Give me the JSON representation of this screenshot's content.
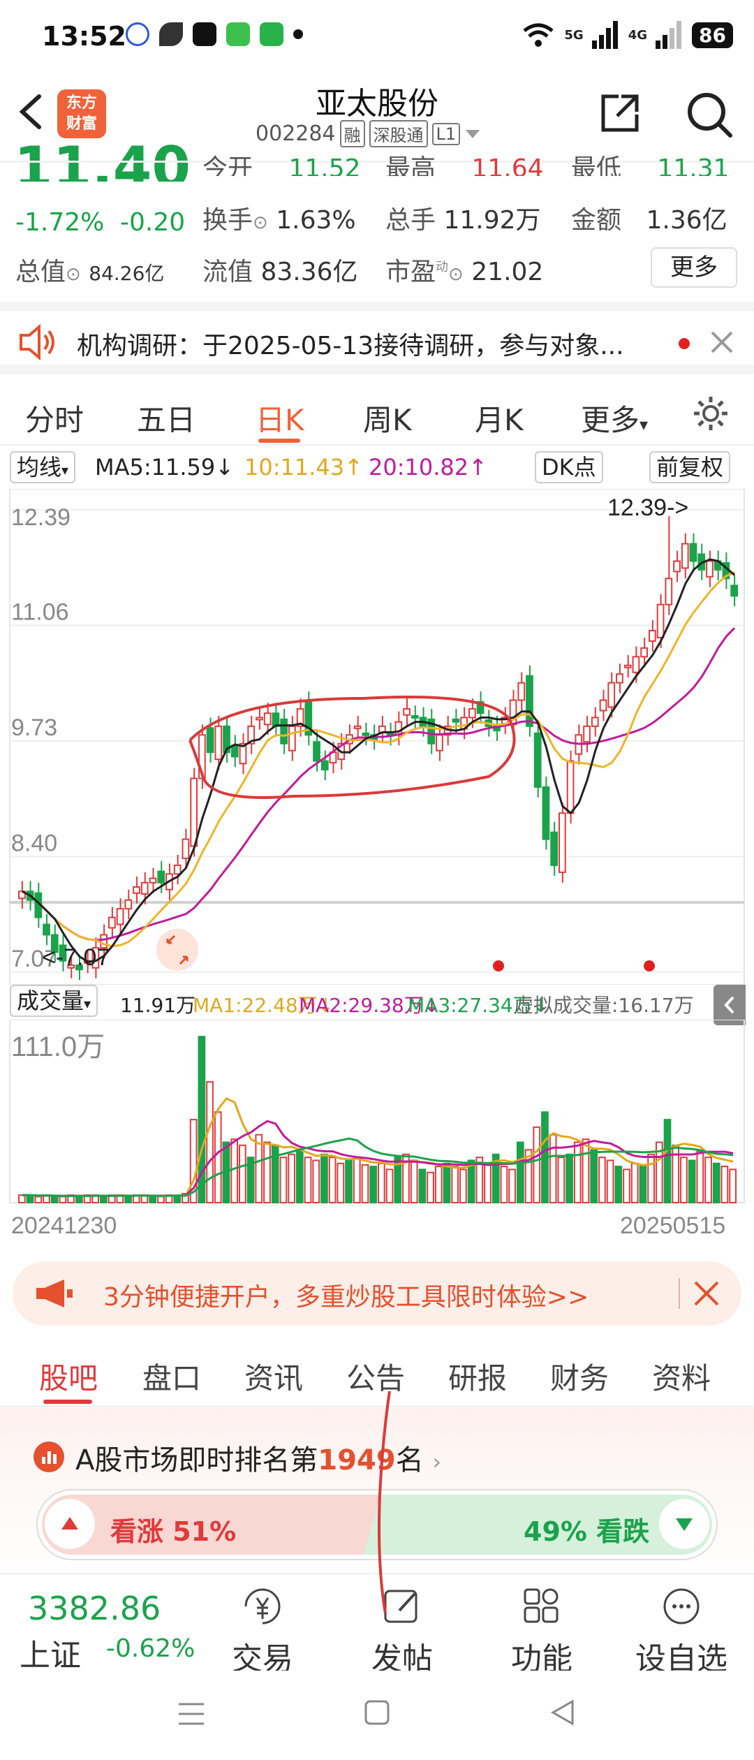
{
  "status": {
    "time": "13:52",
    "network1": "5G",
    "network2": "4G",
    "battery": "86"
  },
  "header": {
    "logo_line1": "东方",
    "logo_line2": "财富",
    "name": "亚太股份",
    "code": "002284",
    "tags": [
      "融",
      "深股通",
      "L1"
    ]
  },
  "quote": {
    "price": "11.40",
    "change_pct": "-1.72%",
    "change": "-0.20",
    "open_label": "今开",
    "open": "11.52",
    "high_label": "最高",
    "high": "11.64",
    "low_label": "最低",
    "low": "11.31",
    "turnover_label": "换手",
    "turnover": "1.63%",
    "volume_label": "总手",
    "volume": "11.92万",
    "amount_label": "金额",
    "amount": "1.36亿",
    "mktcap_label": "总值",
    "mktcap": "84.26亿",
    "float_label": "流值",
    "float": "83.36亿",
    "pe_label": "市盈",
    "pe_sup": "动",
    "pe": "21.02",
    "more": "更多"
  },
  "notice": {
    "text": "机构调研：于2025-05-13接待调研，参与对象..."
  },
  "ktabs": [
    "分时",
    "五日",
    "日K",
    "周K",
    "月K",
    "更多"
  ],
  "ma": {
    "selector": "均线",
    "ma5": "MA5:11.59↓",
    "ma10": "10:11.43↑",
    "ma20": "20:10.82↑",
    "dk": "DK点",
    "adjust": "前复权"
  },
  "chart_data": {
    "type": "candlestick",
    "y_ticks": [
      "12.39",
      "11.06",
      "9.73",
      "8.40",
      "7.07"
    ],
    "max_label": "12.39->",
    "min_label": "7.07",
    "ylim": [
      7.07,
      12.39
    ],
    "start_date": "20241230",
    "end_date": "20250515",
    "colors": {
      "up": "#e03a3a",
      "down": "#1aa34a",
      "ma5": "#222222",
      "ma10": "#f0b429",
      "ma20": "#c21a9a"
    }
  },
  "volume": {
    "selector": "成交量",
    "vol": "11.91万",
    "ma1": "MA1:22.48万↓",
    "ma2": "MA2:29.38万↓",
    "ma3": "MA3:27.34万↓",
    "virtual": "虚拟成交量:16.17万",
    "max_label": "111.0万"
  },
  "promo": {
    "text": "3分钟便捷开户，多重炒股工具限时体验>>"
  },
  "btabs": [
    "股吧",
    "盘口",
    "资讯",
    "公告",
    "研报",
    "财务",
    "资料"
  ],
  "rank": {
    "prefix": "A股市场即时排名第",
    "num": "1949",
    "suffix": "名"
  },
  "sentiment": {
    "up": "看涨 51%",
    "down": "49% 看跌"
  },
  "bnav": {
    "index_value": "3382.86",
    "index_name": "上证",
    "index_change": "-0.62%",
    "items": [
      "交易",
      "发帖",
      "功能",
      "设自选"
    ]
  }
}
